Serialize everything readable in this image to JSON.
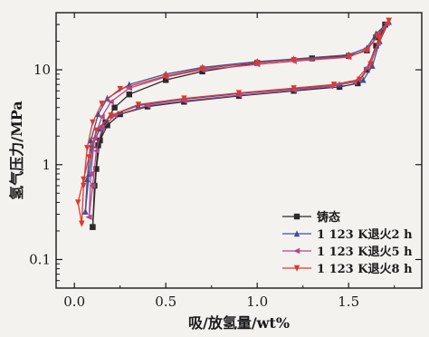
{
  "chart_data": {
    "type": "line",
    "title": "",
    "xlabel": "吸/放氢量/wt%",
    "ylabel": "氢气压力/MPa",
    "xlim": [
      -0.1,
      1.9
    ],
    "ylim": [
      0.05,
      40
    ],
    "yscale": "log",
    "x_ticks": [
      0.0,
      0.5,
      1.0,
      1.5
    ],
    "x_tick_labels": [
      "0.0",
      "0.5",
      "1.0",
      "1.5"
    ],
    "y_ticks": [
      0.1,
      1,
      10
    ],
    "y_tick_labels": [
      "0.1",
      "1",
      "10"
    ],
    "grid": false,
    "legend_position": "bottom-right",
    "series": [
      {
        "name": "铸态",
        "color": "#2a2a2a",
        "marker": "square",
        "absorption": [
          [
            0.1,
            0.22
          ],
          [
            0.11,
            0.6
          ],
          [
            0.13,
            1.6
          ],
          [
            0.17,
            2.8
          ],
          [
            0.22,
            4.0
          ],
          [
            0.3,
            5.5
          ],
          [
            0.5,
            7.8
          ],
          [
            0.7,
            9.6
          ],
          [
            1.0,
            11.8
          ],
          [
            1.3,
            13.2
          ],
          [
            1.5,
            14.0
          ],
          [
            1.6,
            16.0
          ],
          [
            1.65,
            22.0
          ],
          [
            1.7,
            30.0
          ]
        ],
        "desorption": [
          [
            1.7,
            30.0
          ],
          [
            1.65,
            18.0
          ],
          [
            1.6,
            10.0
          ],
          [
            1.55,
            7.2
          ],
          [
            1.45,
            6.6
          ],
          [
            1.2,
            6.0
          ],
          [
            0.9,
            5.3
          ],
          [
            0.6,
            4.6
          ],
          [
            0.4,
            4.1
          ],
          [
            0.25,
            3.4
          ],
          [
            0.18,
            2.6
          ],
          [
            0.14,
            1.8
          ],
          [
            0.12,
            0.9
          ],
          [
            0.1,
            0.22
          ]
        ]
      },
      {
        "name": "1 123 K退火2 h",
        "color": "#3c4fa0",
        "marker": "triangle-up",
        "absorption": [
          [
            0.06,
            0.32
          ],
          [
            0.07,
            0.7
          ],
          [
            0.09,
            1.8
          ],
          [
            0.13,
            3.4
          ],
          [
            0.18,
            5.0
          ],
          [
            0.3,
            7.0
          ],
          [
            0.5,
            9.0
          ],
          [
            0.7,
            10.6
          ],
          [
            1.0,
            12.2
          ],
          [
            1.2,
            13.0
          ],
          [
            1.5,
            14.4
          ],
          [
            1.6,
            17.0
          ],
          [
            1.65,
            24.0
          ],
          [
            1.72,
            32.0
          ]
        ],
        "desorption": [
          [
            1.72,
            32.0
          ],
          [
            1.67,
            20.0
          ],
          [
            1.63,
            11.0
          ],
          [
            1.58,
            7.8
          ],
          [
            1.45,
            7.0
          ],
          [
            1.2,
            6.3
          ],
          [
            0.9,
            5.6
          ],
          [
            0.6,
            4.9
          ],
          [
            0.35,
            4.2
          ],
          [
            0.2,
            3.3
          ],
          [
            0.14,
            2.4
          ],
          [
            0.1,
            1.6
          ],
          [
            0.08,
            0.8
          ],
          [
            0.06,
            0.32
          ]
        ]
      },
      {
        "name": "1 123 K退火5 h",
        "color": "#b04a86",
        "marker": "triangle-left",
        "absorption": [
          [
            0.08,
            0.28
          ],
          [
            0.09,
            0.8
          ],
          [
            0.11,
            1.9
          ],
          [
            0.15,
            3.2
          ],
          [
            0.2,
            4.6
          ],
          [
            0.3,
            6.4
          ],
          [
            0.5,
            8.4
          ],
          [
            0.7,
            10.0
          ],
          [
            1.0,
            11.4
          ],
          [
            1.2,
            12.3
          ],
          [
            1.5,
            13.6
          ],
          [
            1.6,
            16.5
          ],
          [
            1.66,
            23.0
          ],
          [
            1.71,
            31.0
          ]
        ],
        "desorption": [
          [
            1.71,
            31.0
          ],
          [
            1.66,
            19.0
          ],
          [
            1.6,
            10.5
          ],
          [
            1.53,
            7.4
          ],
          [
            1.4,
            6.7
          ],
          [
            1.2,
            6.1
          ],
          [
            0.9,
            5.4
          ],
          [
            0.6,
            4.7
          ],
          [
            0.4,
            4.2
          ],
          [
            0.22,
            3.3
          ],
          [
            0.15,
            2.4
          ],
          [
            0.12,
            1.4
          ],
          [
            0.1,
            0.6
          ],
          [
            0.08,
            0.28
          ]
        ]
      },
      {
        "name": "1 123 K退火8 h",
        "color": "#e0382c",
        "marker": "triangle-down",
        "absorption": [
          [
            0.04,
            0.24
          ],
          [
            0.05,
            0.6
          ],
          [
            0.07,
            1.5
          ],
          [
            0.1,
            2.8
          ],
          [
            0.15,
            4.4
          ],
          [
            0.25,
            6.3
          ],
          [
            0.5,
            8.6
          ],
          [
            0.7,
            10.3
          ],
          [
            1.0,
            11.9
          ],
          [
            1.2,
            12.7
          ],
          [
            1.5,
            13.8
          ],
          [
            1.6,
            16.0
          ],
          [
            1.66,
            23.0
          ],
          [
            1.72,
            33.0
          ]
        ],
        "desorption": [
          [
            1.72,
            33.0
          ],
          [
            1.67,
            21.0
          ],
          [
            1.62,
            11.5
          ],
          [
            1.56,
            7.9
          ],
          [
            1.42,
            7.0
          ],
          [
            1.2,
            6.4
          ],
          [
            0.9,
            5.7
          ],
          [
            0.6,
            5.0
          ],
          [
            0.35,
            4.3
          ],
          [
            0.2,
            3.3
          ],
          [
            0.12,
            2.3
          ],
          [
            0.08,
            1.2
          ],
          [
            0.05,
            0.7
          ],
          [
            0.02,
            0.4
          ],
          [
            0.04,
            0.24
          ]
        ]
      }
    ]
  }
}
